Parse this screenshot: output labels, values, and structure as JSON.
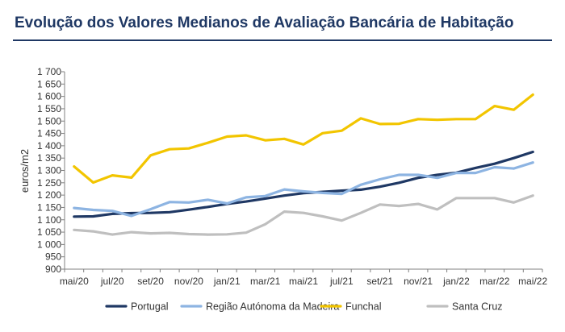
{
  "chart_data": {
    "type": "line",
    "title": "Evolução dos Valores Medianos de Avaliação Bancária de Habitação",
    "ylabel": "euros/m2",
    "ylim": [
      900,
      1700
    ],
    "yticks": [
      900,
      950,
      1000,
      1050,
      1100,
      1150,
      1200,
      1250,
      1300,
      1350,
      1400,
      1450,
      1500,
      1550,
      1600,
      1650,
      1700
    ],
    "ytick_labels": [
      "900",
      "950",
      "1 000",
      "1 050",
      "1 100",
      "1 150",
      "1 200",
      "1 250",
      "1 300",
      "1 350",
      "1 400",
      "1 450",
      "1 500",
      "1 550",
      "1 600",
      "1 650",
      "1 700"
    ],
    "x": [
      "mai/20",
      "jun/20",
      "jul/20",
      "ago/20",
      "set/20",
      "out/20",
      "nov/20",
      "dez/20",
      "jan/21",
      "fev/21",
      "mar/21",
      "abr/21",
      "mai/21",
      "jun/21",
      "jul/21",
      "ago/21",
      "set/21",
      "out/21",
      "nov/21",
      "dez/21",
      "jan/22",
      "fev/22",
      "mar/22",
      "abr/22",
      "mai/22"
    ],
    "xtick_labels": [
      "mai/20",
      "jul/20",
      "set/20",
      "nov/20",
      "jan/21",
      "mar/21",
      "mai/21",
      "jul/21",
      "set/21",
      "nov/21",
      "jan/22",
      "mar/22",
      "mai/22"
    ],
    "grid": false,
    "legend": "bottom",
    "series": [
      {
        "name": "Portugal",
        "color": "#1f3864",
        "values": [
          1113,
          1114,
          1124,
          1127,
          1128,
          1131,
          1141,
          1152,
          1164,
          1174,
          1186,
          1198,
          1208,
          1213,
          1218,
          1222,
          1234,
          1250,
          1270,
          1282,
          1291,
          1310,
          1327,
          1350,
          1375
        ]
      },
      {
        "name": "Região Autónoma da Madeira",
        "color": "#8db4e2",
        "values": [
          1148,
          1140,
          1136,
          1116,
          1143,
          1172,
          1170,
          1181,
          1166,
          1191,
          1196,
          1223,
          1215,
          1209,
          1205,
          1242,
          1264,
          1282,
          1282,
          1270,
          1290,
          1290,
          1313,
          1308,
          1332
        ]
      },
      {
        "name": "Funchal",
        "color": "#f2c500",
        "values": [
          1316,
          1251,
          1280,
          1271,
          1361,
          1386,
          1389,
          1412,
          1437,
          1442,
          1422,
          1428,
          1405,
          1451,
          1461,
          1511,
          1488,
          1489,
          1508,
          1505,
          1508,
          1508,
          1561,
          1546,
          1607
        ]
      },
      {
        "name": "Santa Cruz",
        "color": "#bfbfbf",
        "values": [
          1059,
          1053,
          1040,
          1050,
          1045,
          1047,
          1042,
          1040,
          1041,
          1048,
          1082,
          1133,
          1128,
          1114,
          1097,
          1128,
          1162,
          1156,
          1164,
          1142,
          1188,
          1188,
          1188,
          1170,
          1198
        ]
      }
    ]
  }
}
